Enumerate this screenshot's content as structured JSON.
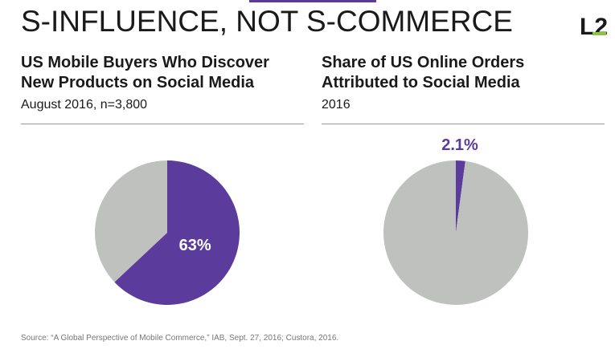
{
  "header": {
    "title": "S-INFLUENCE, NOT S-COMMERCE",
    "logo_text": "L2",
    "accent_color": "#5b3b9b"
  },
  "panels": [
    {
      "title_line1": "US Mobile Buyers Who Discover",
      "title_line2": "New Products on Social Media",
      "subtitle": "August 2016, n=3,800"
    },
    {
      "title_line1": "Share of US Online Orders",
      "title_line2": "Attributed to Social Media",
      "subtitle": "2016"
    }
  ],
  "chart_data": [
    {
      "type": "pie",
      "title": "US Mobile Buyers Who Discover New Products on Social Media",
      "subtitle": "August 2016, n=3,800",
      "slices": [
        {
          "value": 63,
          "color": "#5b3b9b",
          "data_label": "63%"
        },
        {
          "value": 37,
          "color": "#bfc1bf"
        }
      ]
    },
    {
      "type": "pie",
      "title": "Share of US Online Orders Attributed to Social Media",
      "subtitle": "2016",
      "slices": [
        {
          "value": 2.1,
          "color": "#5b3b9b",
          "data_label": "2.1%"
        },
        {
          "value": 97.9,
          "color": "#bfc1bf"
        }
      ]
    }
  ],
  "footer": {
    "source": "Source: “A Global Perspective of Mobile Commerce,” IAB, Sept. 27, 2016; Custora, 2016."
  }
}
